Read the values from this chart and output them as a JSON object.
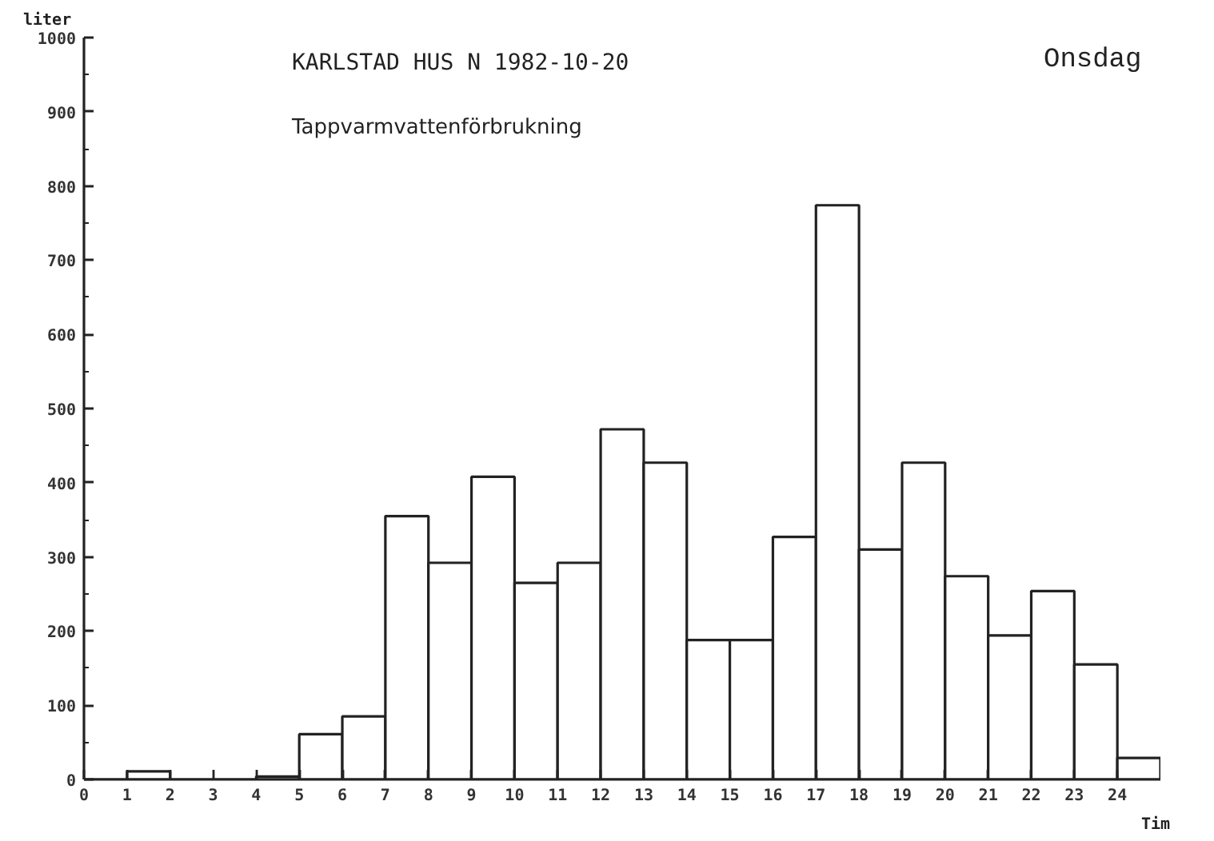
{
  "chart_data": {
    "type": "histogram",
    "title": "KARLSTAD HUS N 1982-10-20",
    "subtitle": "Tappvarmvattenförbrukning",
    "xlabel": "Tim",
    "ylabel": "liter",
    "annotations": [
      "Onsdag"
    ],
    "bins": [
      0,
      1,
      2,
      3,
      4,
      5,
      6,
      7,
      8,
      9,
      10,
      11,
      12,
      13,
      14,
      15,
      16,
      17,
      18,
      19,
      20,
      21,
      22,
      23,
      24,
      25
    ],
    "values": [
      0,
      11,
      0,
      0,
      4,
      61,
      85,
      355,
      292,
      408,
      265,
      292,
      472,
      427,
      188,
      188,
      327,
      774,
      310,
      427,
      274,
      194,
      254,
      155,
      29
    ],
    "color": "#ffffff",
    "xlim": [
      0,
      25
    ],
    "xticks": [
      0,
      1,
      2,
      3,
      4,
      5,
      6,
      7,
      8,
      9,
      10,
      11,
      12,
      13,
      14,
      15,
      16,
      17,
      18,
      19,
      20,
      21,
      22,
      23,
      24
    ],
    "ylim": [
      0,
      1000
    ],
    "yticks": [
      0,
      100,
      200,
      300,
      400,
      500,
      600,
      700,
      800,
      900,
      1000
    ],
    "grid": false
  }
}
